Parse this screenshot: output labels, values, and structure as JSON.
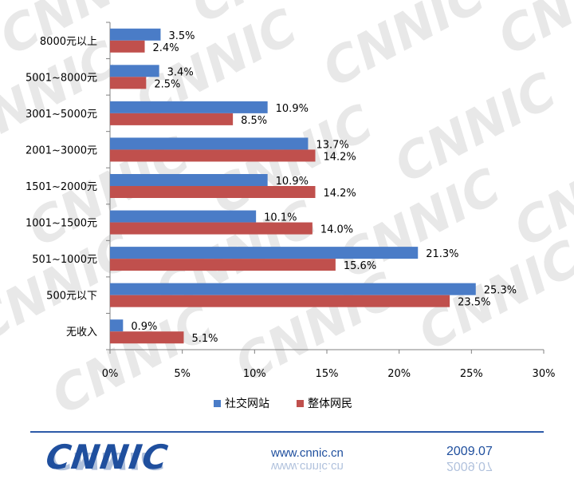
{
  "chart_data": {
    "type": "bar",
    "orientation": "horizontal",
    "categories": [
      "8000元以上",
      "5001~8000元",
      "3001~5000元",
      "2001~3000元",
      "1501~2000元",
      "1001~1500元",
      "501~1000元",
      "500元以下",
      "无收入"
    ],
    "series": [
      {
        "name": "社交网站",
        "color": "#4a7cc7",
        "values": [
          3.5,
          3.4,
          10.9,
          13.7,
          10.9,
          10.1,
          21.3,
          25.3,
          0.9
        ]
      },
      {
        "name": "整体网民",
        "color": "#c0504d",
        "values": [
          2.4,
          2.5,
          8.5,
          14.2,
          14.2,
          14.0,
          15.6,
          23.5,
          5.1
        ]
      }
    ],
    "data_labels": [
      [
        "3.5%",
        "3.4%",
        "10.9%",
        "13.7%",
        "10.9%",
        "10.1%",
        "21.3%",
        "25.3%",
        "0.9%"
      ],
      [
        "2.4%",
        "2.5%",
        "8.5%",
        "14.2%",
        "14.2%",
        "14.0%",
        "15.6%",
        "23.5%",
        "5.1%"
      ]
    ],
    "xlim": [
      0,
      30
    ],
    "x_ticks": [
      0,
      5,
      10,
      15,
      20,
      25,
      30
    ],
    "x_tick_labels": [
      "0%",
      "5%",
      "10%",
      "15%",
      "20%",
      "25%",
      "30%"
    ],
    "grid": false,
    "legend_position": "bottom"
  },
  "footer": {
    "logo": "CNNIC",
    "url": "www.cnnic.cn",
    "date": "2009.07"
  },
  "watermark": "CNNIC"
}
